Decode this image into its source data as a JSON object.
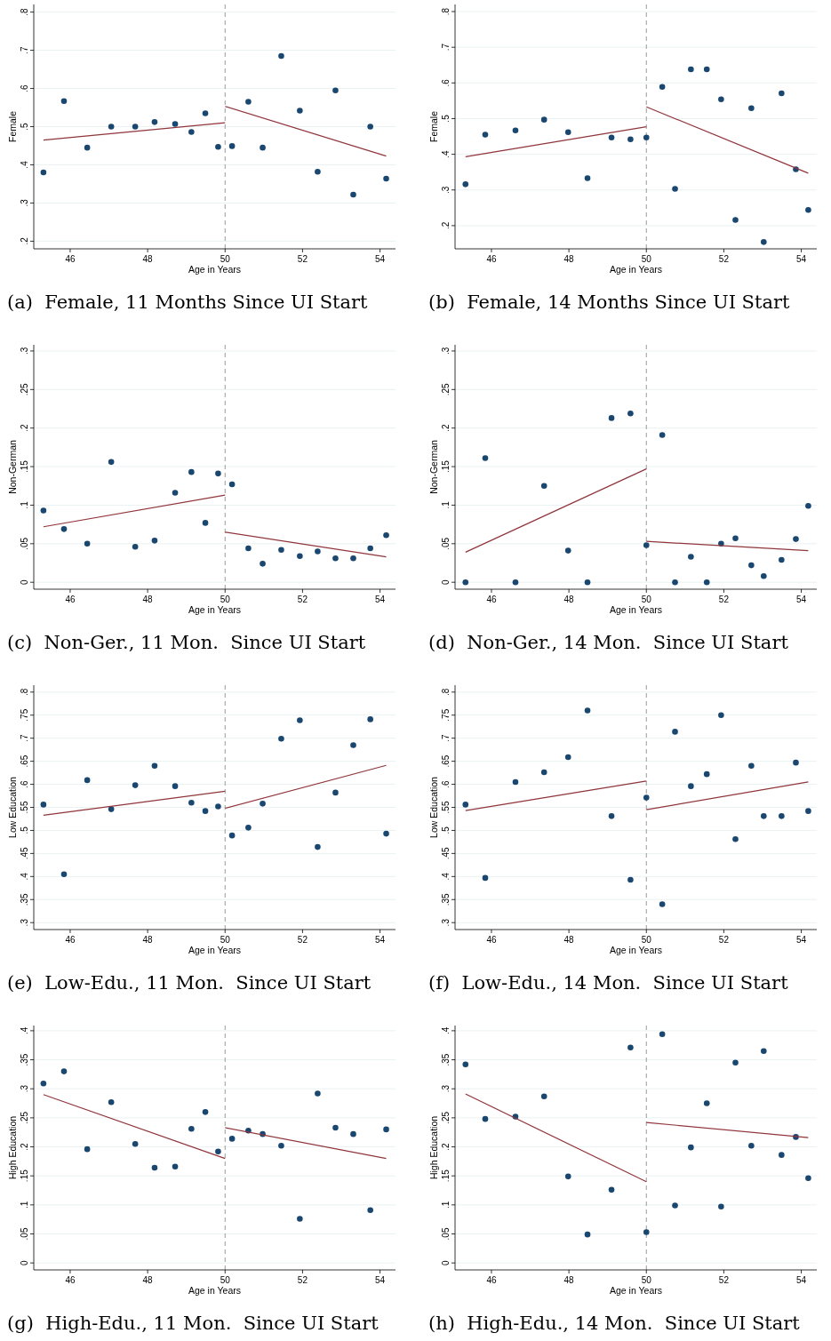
{
  "chart_data": [
    {
      "type": "scatter",
      "title": "(a)  Female, 11 Months Since UI Start",
      "xlabel": "Age in Years",
      "ylabel": "Female",
      "grid": "y",
      "xlim": [
        45.06,
        54.4
      ],
      "xticks": [
        46,
        48,
        50,
        52,
        54
      ],
      "ylim": [
        0.18,
        0.82
      ],
      "yticks": [
        {
          "value": 0.2,
          "label": ".2"
        },
        {
          "value": 0.3,
          "label": ".3"
        },
        {
          "value": 0.4,
          "label": ".4"
        },
        {
          "value": 0.5,
          "label": ".5"
        },
        {
          "value": 0.6,
          "label": ".6"
        },
        {
          "value": 0.7,
          "label": ".7"
        },
        {
          "value": 0.8,
          "label": ".8"
        }
      ],
      "ref_lines": [
        {
          "axis": "x",
          "value": 50,
          "color": "#999999",
          "line_style": "dashed"
        }
      ],
      "x": [
        45.31,
        45.84,
        46.44,
        47.06,
        47.68,
        48.18,
        48.71,
        49.13,
        49.49,
        49.82,
        50.18,
        50.6,
        50.97,
        51.45,
        51.93,
        52.39,
        52.85,
        53.31,
        53.75,
        54.16
      ],
      "series": [
        {
          "type": "scatter",
          "color": "#1a476f",
          "marker": "circle",
          "values": [
            0.38,
            0.567,
            0.445,
            0.5,
            0.5,
            0.512,
            0.507,
            0.486,
            0.535,
            0.447,
            0.449,
            0.565,
            0.445,
            0.685,
            0.542,
            0.382,
            0.595,
            0.322,
            0.5,
            0.364
          ]
        },
        {
          "type": "line",
          "color": "#90353b",
          "x": [
            45.31,
            50
          ],
          "values": [
            0.465,
            0.51
          ]
        },
        {
          "type": "line",
          "color": "#90353b",
          "x": [
            50,
            54.16
          ],
          "values": [
            0.553,
            0.423
          ]
        }
      ]
    },
    {
      "type": "scatter",
      "title": "(b)  Female, 14 Months Since UI Start",
      "xlabel": "Age in Years",
      "ylabel": "Female",
      "grid": "y",
      "xlim": [
        45.06,
        54.4
      ],
      "xticks": [
        46,
        48,
        50,
        52,
        54
      ],
      "ylim": [
        0.135,
        0.82
      ],
      "yticks": [
        {
          "value": 0.2,
          "label": ".2"
        },
        {
          "value": 0.3,
          "label": ".3"
        },
        {
          "value": 0.4,
          "label": ".4"
        },
        {
          "value": 0.5,
          "label": ".5"
        },
        {
          "value": 0.6,
          "label": ".6"
        },
        {
          "value": 0.7,
          "label": ".7"
        },
        {
          "value": 0.8,
          "label": ".8"
        }
      ],
      "ref_lines": [
        {
          "axis": "x",
          "value": 50,
          "color": "#999999",
          "line_style": "dashed"
        }
      ],
      "x": [
        45.33,
        45.84,
        46.62,
        47.36,
        47.98,
        48.48,
        49.1,
        49.59,
        50,
        50.41,
        50.74,
        51.15,
        51.56,
        51.93,
        52.3,
        52.71,
        53.03,
        53.49,
        53.86,
        54.18
      ],
      "series": [
        {
          "type": "scatter",
          "color": "#1a476f",
          "marker": "circle",
          "values": [
            0.316,
            0.455,
            0.467,
            0.497,
            0.462,
            0.333,
            0.447,
            0.442,
            0.447,
            0.589,
            0.303,
            0.638,
            0.638,
            0.554,
            0.216,
            0.529,
            0.154,
            0.571,
            0.358,
            0.244
          ]
        },
        {
          "type": "line",
          "color": "#90353b",
          "x": [
            45.33,
            50
          ],
          "values": [
            0.393,
            0.477
          ]
        },
        {
          "type": "line",
          "color": "#90353b",
          "x": [
            50,
            54.18
          ],
          "values": [
            0.533,
            0.347
          ]
        }
      ]
    },
    {
      "type": "scatter",
      "title": "(c)  Non-Ger., 11 Mon.  Since UI Start",
      "xlabel": "Age in Years",
      "ylabel": "Non-German",
      "grid": "y",
      "xlim": [
        45.06,
        54.4
      ],
      "xticks": [
        46,
        48,
        50,
        52,
        54
      ],
      "ylim": [
        -0.009,
        0.308
      ],
      "yticks": [
        {
          "value": 0,
          "label": "0"
        },
        {
          "value": 0.05,
          "label": ".05"
        },
        {
          "value": 0.1,
          "label": ".1"
        },
        {
          "value": 0.15,
          "label": ".15"
        },
        {
          "value": 0.2,
          "label": ".2"
        },
        {
          "value": 0.25,
          "label": ".25"
        },
        {
          "value": 0.3,
          "label": ".3"
        }
      ],
      "ref_lines": [
        {
          "axis": "x",
          "value": 50,
          "color": "#999999",
          "line_style": "dashed"
        }
      ],
      "x": [
        45.31,
        45.84,
        46.44,
        47.06,
        47.68,
        48.18,
        48.71,
        49.13,
        49.49,
        49.82,
        50.18,
        50.6,
        50.97,
        51.45,
        51.93,
        52.39,
        52.85,
        53.31,
        53.75,
        54.16
      ],
      "series": [
        {
          "type": "scatter",
          "color": "#1a476f",
          "marker": "circle",
          "values": [
            0.093,
            0.069,
            0.05,
            0.156,
            0.046,
            0.054,
            0.116,
            0.143,
            0.077,
            0.141,
            0.127,
            0.044,
            0.024,
            0.042,
            0.034,
            0.04,
            0.031,
            0.031,
            0.044,
            0.061
          ]
        },
        {
          "type": "line",
          "color": "#90353b",
          "x": [
            45.31,
            50
          ],
          "values": [
            0.072,
            0.113
          ]
        },
        {
          "type": "line",
          "color": "#90353b",
          "x": [
            50,
            54.16
          ],
          "values": [
            0.065,
            0.033
          ]
        }
      ]
    },
    {
      "type": "scatter",
      "title": "(d)  Non-Ger., 14 Mon.  Since UI Start",
      "xlabel": "Age in Years",
      "ylabel": "Non-German",
      "grid": "y",
      "xlim": [
        45.06,
        54.4
      ],
      "xticks": [
        46,
        48,
        50,
        52,
        54
      ],
      "ylim": [
        -0.009,
        0.308
      ],
      "yticks": [
        {
          "value": 0,
          "label": "0"
        },
        {
          "value": 0.05,
          "label": ".05"
        },
        {
          "value": 0.1,
          "label": ".1"
        },
        {
          "value": 0.15,
          "label": ".15"
        },
        {
          "value": 0.2,
          "label": ".2"
        },
        {
          "value": 0.25,
          "label": ".25"
        },
        {
          "value": 0.3,
          "label": ".3"
        }
      ],
      "ref_lines": [
        {
          "axis": "x",
          "value": 50,
          "color": "#999999",
          "line_style": "dashed"
        }
      ],
      "x": [
        45.33,
        45.84,
        46.62,
        47.36,
        47.98,
        48.48,
        49.1,
        49.59,
        50,
        50.41,
        50.74,
        51.15,
        51.56,
        51.93,
        52.3,
        52.71,
        53.03,
        53.49,
        53.86,
        54.18
      ],
      "series": [
        {
          "type": "scatter",
          "color": "#1a476f",
          "marker": "circle",
          "values": [
            0,
            0.161,
            0,
            0.125,
            0.041,
            0,
            0.213,
            0.219,
            0.048,
            0.191,
            0,
            0.033,
            0,
            0.05,
            0.057,
            0.022,
            0.008,
            0.029,
            0.056,
            0.099
          ]
        },
        {
          "type": "line",
          "color": "#90353b",
          "x": [
            45.33,
            50
          ],
          "values": [
            0.039,
            0.147
          ]
        },
        {
          "type": "line",
          "color": "#90353b",
          "x": [
            50,
            54.18
          ],
          "values": [
            0.053,
            0.041
          ]
        }
      ]
    },
    {
      "type": "scatter",
      "title": "(e)  Low-Edu., 11 Mon.  Since UI Start",
      "xlabel": "Age in Years",
      "ylabel": "Low Education",
      "grid": "y",
      "xlim": [
        45.06,
        54.4
      ],
      "xticks": [
        46,
        48,
        50,
        52,
        54
      ],
      "ylim": [
        0.285,
        0.815
      ],
      "yticks": [
        {
          "value": 0.3,
          "label": ".3"
        },
        {
          "value": 0.35,
          "label": ".35"
        },
        {
          "value": 0.4,
          "label": ".4"
        },
        {
          "value": 0.45,
          "label": ".45"
        },
        {
          "value": 0.5,
          "label": ".5"
        },
        {
          "value": 0.55,
          "label": ".55"
        },
        {
          "value": 0.6,
          "label": ".6"
        },
        {
          "value": 0.65,
          "label": ".65"
        },
        {
          "value": 0.7,
          "label": ".7"
        },
        {
          "value": 0.75,
          "label": ".75"
        },
        {
          "value": 0.8,
          "label": ".8"
        }
      ],
      "ref_lines": [
        {
          "axis": "x",
          "value": 50,
          "color": "#999999",
          "line_style": "dashed"
        }
      ],
      "x": [
        45.31,
        45.84,
        46.44,
        47.06,
        47.68,
        48.18,
        48.71,
        49.13,
        49.49,
        49.82,
        50.18,
        50.6,
        50.97,
        51.45,
        51.93,
        52.39,
        52.85,
        53.31,
        53.75,
        54.16
      ],
      "series": [
        {
          "type": "scatter",
          "color": "#1a476f",
          "marker": "circle",
          "values": [
            0.556,
            0.405,
            0.609,
            0.546,
            0.598,
            0.64,
            0.596,
            0.56,
            0.542,
            0.552,
            0.489,
            0.506,
            0.558,
            0.699,
            0.739,
            0.464,
            0.582,
            0.685,
            0.741,
            0.493
          ]
        },
        {
          "type": "line",
          "color": "#90353b",
          "x": [
            45.31,
            50
          ],
          "values": [
            0.533,
            0.585
          ]
        },
        {
          "type": "line",
          "color": "#90353b",
          "x": [
            50,
            54.16
          ],
          "values": [
            0.548,
            0.641
          ]
        }
      ]
    },
    {
      "type": "scatter",
      "title": "(f)  Low-Edu., 14 Mon.  Since UI Start",
      "xlabel": "Age in Years",
      "ylabel": "Low Education",
      "grid": "y",
      "xlim": [
        45.06,
        54.4
      ],
      "xticks": [
        46,
        48,
        50,
        52,
        54
      ],
      "ylim": [
        0.285,
        0.815
      ],
      "yticks": [
        {
          "value": 0.3,
          "label": ".3"
        },
        {
          "value": 0.35,
          "label": ".35"
        },
        {
          "value": 0.4,
          "label": ".4"
        },
        {
          "value": 0.45,
          "label": ".45"
        },
        {
          "value": 0.5,
          "label": ".5"
        },
        {
          "value": 0.55,
          "label": ".55"
        },
        {
          "value": 0.6,
          "label": ".6"
        },
        {
          "value": 0.65,
          "label": ".65"
        },
        {
          "value": 0.7,
          "label": ".7"
        },
        {
          "value": 0.75,
          "label": ".75"
        },
        {
          "value": 0.8,
          "label": ".8"
        }
      ],
      "ref_lines": [
        {
          "axis": "x",
          "value": 50,
          "color": "#999999",
          "line_style": "dashed"
        }
      ],
      "x": [
        45.33,
        45.84,
        46.62,
        47.36,
        47.98,
        48.48,
        49.1,
        49.59,
        50,
        50.41,
        50.74,
        51.15,
        51.56,
        51.93,
        52.3,
        52.71,
        53.03,
        53.49,
        53.86,
        54.18
      ],
      "series": [
        {
          "type": "scatter",
          "color": "#1a476f",
          "marker": "circle",
          "values": [
            0.556,
            0.397,
            0.605,
            0.626,
            0.659,
            0.76,
            0.531,
            0.393,
            0.571,
            0.34,
            0.714,
            0.596,
            0.622,
            0.75,
            0.481,
            0.64,
            0.531,
            0.531,
            0.647,
            0.542
          ]
        },
        {
          "type": "line",
          "color": "#90353b",
          "x": [
            45.33,
            50
          ],
          "values": [
            0.543,
            0.607
          ]
        },
        {
          "type": "line",
          "color": "#90353b",
          "x": [
            50,
            54.18
          ],
          "values": [
            0.545,
            0.605
          ]
        }
      ]
    },
    {
      "type": "scatter",
      "title": "(g)  High-Edu., 11 Mon.  Since UI Start",
      "xlabel": "Age in Years",
      "ylabel": "High Education",
      "grid": "y",
      "xlim": [
        45.06,
        54.4
      ],
      "xticks": [
        46,
        48,
        50,
        52,
        54
      ],
      "ylim": [
        -0.012,
        0.409
      ],
      "yticks": [
        {
          "value": 0,
          "label": "0"
        },
        {
          "value": 0.05,
          "label": ".05"
        },
        {
          "value": 0.1,
          "label": ".1"
        },
        {
          "value": 0.15,
          "label": ".15"
        },
        {
          "value": 0.2,
          "label": ".2"
        },
        {
          "value": 0.25,
          "label": ".25"
        },
        {
          "value": 0.3,
          "label": ".3"
        },
        {
          "value": 0.35,
          "label": ".35"
        },
        {
          "value": 0.4,
          "label": ".4"
        }
      ],
      "ref_lines": [
        {
          "axis": "x",
          "value": 50,
          "color": "#999999",
          "line_style": "dashed"
        }
      ],
      "x": [
        45.31,
        45.84,
        46.44,
        47.06,
        47.68,
        48.18,
        48.71,
        49.13,
        49.49,
        49.82,
        50.18,
        50.6,
        50.97,
        51.45,
        51.93,
        52.39,
        52.85,
        53.31,
        53.75,
        54.16
      ],
      "series": [
        {
          "type": "scatter",
          "color": "#1a476f",
          "marker": "circle",
          "values": [
            0.309,
            0.33,
            0.196,
            0.277,
            0.205,
            0.164,
            0.166,
            0.231,
            0.26,
            0.192,
            0.214,
            0.228,
            0.222,
            0.202,
            0.076,
            0.292,
            0.233,
            0.222,
            0.091,
            0.23
          ]
        },
        {
          "type": "line",
          "color": "#90353b",
          "x": [
            45.31,
            50
          ],
          "values": [
            0.29,
            0.18
          ]
        },
        {
          "type": "line",
          "color": "#90353b",
          "x": [
            50,
            54.16
          ],
          "values": [
            0.233,
            0.18
          ]
        }
      ]
    },
    {
      "type": "scatter",
      "title": "(h)  High-Edu., 14 Mon.  Since UI Start",
      "xlabel": "Age in Years",
      "ylabel": "High Education",
      "grid": "y",
      "xlim": [
        45.06,
        54.4
      ],
      "xticks": [
        46,
        48,
        50,
        52,
        54
      ],
      "ylim": [
        -0.012,
        0.409
      ],
      "yticks": [
        {
          "value": 0,
          "label": "0"
        },
        {
          "value": 0.05,
          "label": ".05"
        },
        {
          "value": 0.1,
          "label": ".1"
        },
        {
          "value": 0.15,
          "label": ".15"
        },
        {
          "value": 0.2,
          "label": ".2"
        },
        {
          "value": 0.25,
          "label": ".25"
        },
        {
          "value": 0.3,
          "label": ".3"
        },
        {
          "value": 0.35,
          "label": ".35"
        },
        {
          "value": 0.4,
          "label": ".4"
        }
      ],
      "ref_lines": [
        {
          "axis": "x",
          "value": 50,
          "color": "#999999",
          "line_style": "dashed"
        }
      ],
      "x": [
        45.33,
        45.84,
        46.62,
        47.36,
        47.98,
        48.48,
        49.1,
        49.59,
        50,
        50.41,
        50.74,
        51.15,
        51.56,
        51.93,
        52.3,
        52.71,
        53.03,
        53.49,
        53.86,
        54.18
      ],
      "series": [
        {
          "type": "scatter",
          "color": "#1a476f",
          "marker": "circle",
          "values": [
            0.342,
            0.248,
            0.252,
            0.287,
            0.149,
            0.049,
            0.126,
            0.371,
            0.053,
            0.394,
            0.099,
            0.199,
            0.275,
            0.097,
            0.345,
            0.202,
            0.365,
            0.186,
            0.217,
            0.146
          ]
        },
        {
          "type": "line",
          "color": "#90353b",
          "x": [
            45.33,
            50
          ],
          "values": [
            0.291,
            0.14
          ]
        },
        {
          "type": "line",
          "color": "#90353b",
          "x": [
            50,
            54.18
          ],
          "values": [
            0.242,
            0.216
          ]
        }
      ]
    }
  ]
}
